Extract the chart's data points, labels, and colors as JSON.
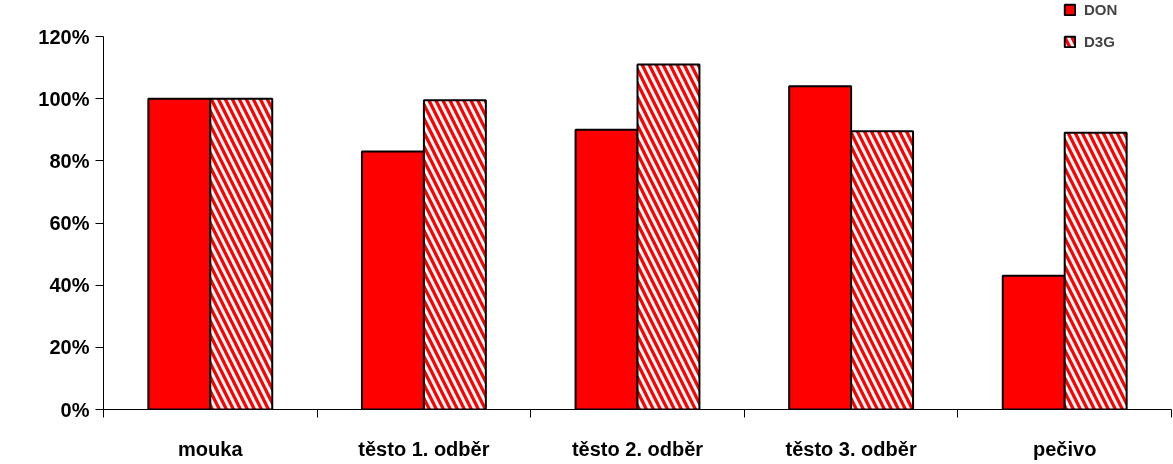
{
  "chart_data": {
    "type": "bar",
    "categories": [
      "mouka",
      "těsto 1. odběr",
      "těsto 2. odběr",
      "těsto 3. odběr",
      "pečivo"
    ],
    "series": [
      {
        "name": "DON",
        "color": "#ff0000",
        "values": [
          100,
          83,
          90,
          104,
          43
        ]
      },
      {
        "name": "D3G",
        "color": "#ff0000",
        "values": [
          100,
          99.5,
          111,
          89.5,
          89
        ]
      }
    ],
    "ylim": [
      0,
      120
    ],
    "yticks": [
      {
        "value": 0,
        "label": "0%"
      },
      {
        "value": 20,
        "label": "20%"
      },
      {
        "value": 40,
        "label": "40%"
      },
      {
        "value": 60,
        "label": "60%"
      },
      {
        "value": 80,
        "label": "80%"
      },
      {
        "value": 100,
        "label": "100%"
      },
      {
        "value": 120,
        "label": "120%"
      }
    ],
    "grid": false,
    "legend": "top right"
  }
}
